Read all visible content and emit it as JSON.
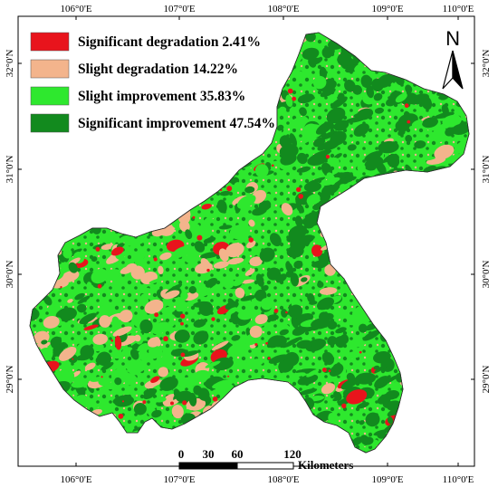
{
  "legend": {
    "items": [
      {
        "label": "Significant degradation 2.41%",
        "color": "#e8141c"
      },
      {
        "label": "Slight degradation 14.22%",
        "color": "#f3b48c"
      },
      {
        "label": "Slight improvement 35.83%",
        "color": "#2ee82e"
      },
      {
        "label": "Significant improvement 47.54%",
        "color": "#128a1e"
      }
    ]
  },
  "axes": {
    "top_ticks": [
      "106°0'E",
      "107°0'E",
      "108°0'E",
      "109°0'E",
      "110°0'E"
    ],
    "bottom_ticks": [
      "106°0'E",
      "107°0'E",
      "108°0'E",
      "109°0'E",
      "110°0'E"
    ],
    "left_ticks": [
      "32°0'N",
      "31°0'N",
      "30°0'N",
      "29°0'N"
    ],
    "right_ticks": [
      "32°0'N",
      "31°0'N",
      "30°0'N",
      "29°0'N"
    ]
  },
  "north_arrow": {
    "letter": "N",
    "icon": "north-arrow-icon"
  },
  "scale_bar": {
    "labels": [
      "0",
      "30",
      "60",
      "120"
    ],
    "unit": "Kilometers"
  }
}
